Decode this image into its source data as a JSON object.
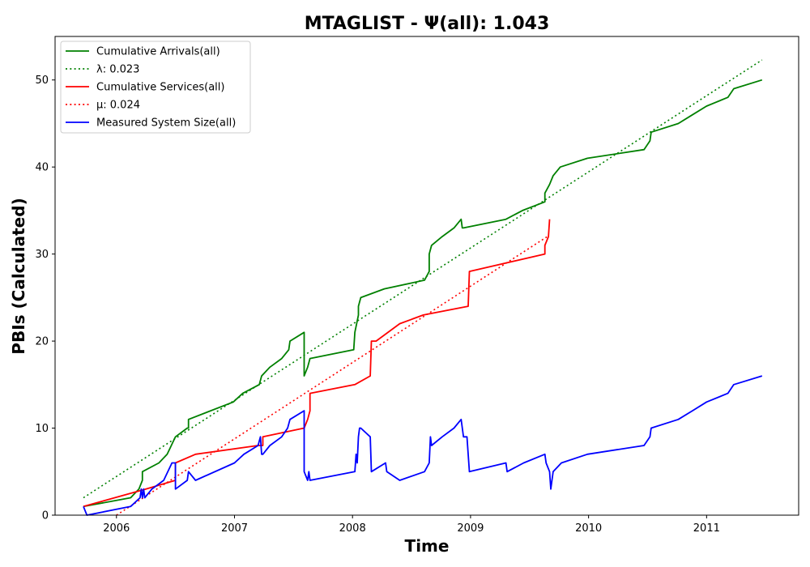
{
  "chart_data": {
    "type": "line",
    "title": "MTAGLIST -  Ψ(all): 1.043",
    "xlabel": "Time",
    "ylabel": "PBIs (Calculated)",
    "xlim": [
      2005.48,
      2011.78
    ],
    "ylim": [
      0,
      55
    ],
    "x_ticks": [
      2006,
      2007,
      2008,
      2009,
      2010,
      2011
    ],
    "x_tick_labels": [
      "2006",
      "2007",
      "2008",
      "2009",
      "2010",
      "2011"
    ],
    "y_ticks": [
      0,
      10,
      20,
      30,
      40,
      50
    ],
    "y_tick_labels": [
      "0",
      "10",
      "20",
      "30",
      "40",
      "50"
    ],
    "grid": false,
    "legend_position": "top-left",
    "series": [
      {
        "name": "Cumulative Arrivals(all)",
        "color": "#008000",
        "style": "solid",
        "x": [
          2005.72,
          2006.12,
          2006.19,
          2006.22,
          2006.22,
          2006.36,
          2006.43,
          2006.5,
          2006.6,
          2006.61,
          2006.61,
          2006.99,
          2007.07,
          2007.21,
          2007.23,
          2007.3,
          2007.4,
          2007.46,
          2007.47,
          2007.59,
          2007.59,
          2007.62,
          2007.64,
          2007.64,
          2008.01,
          2008.02,
          2008.05,
          2008.05,
          2008.07,
          2008.27,
          2008.61,
          2008.65,
          2008.65,
          2008.67,
          2008.76,
          2008.86,
          2008.92,
          2008.93,
          2008.94,
          2009.3,
          2009.44,
          2009.63,
          2009.63,
          2009.67,
          2009.7,
          2009.76,
          2009.99,
          2010.47,
          2010.52,
          2010.53,
          2010.76,
          2010.88,
          2011.0,
          2011.18,
          2011.23,
          2011.47
        ],
        "values": [
          1,
          2,
          3,
          4,
          5,
          6,
          7,
          9,
          10,
          10,
          11,
          13,
          14,
          15,
          16,
          17,
          18,
          19,
          20,
          21,
          16,
          17,
          18,
          18,
          19,
          21,
          23,
          24,
          25,
          26,
          27,
          28,
          30,
          31,
          32,
          33,
          34,
          33,
          33,
          34,
          35,
          36,
          37,
          38,
          39,
          40,
          41,
          42,
          43,
          44,
          45,
          46,
          47,
          48,
          49,
          50
        ]
      },
      {
        "name": "λ: 0.023",
        "color": "#008000",
        "style": "dotted",
        "x": [
          2005.72,
          2011.47
        ],
        "values": [
          2,
          52.3
        ]
      },
      {
        "name": "Cumulative Services(all)",
        "color": "#ff0000",
        "style": "solid",
        "x": [
          2005.72,
          2006.25,
          2006.5,
          2006.5,
          2006.67,
          2007.2,
          2007.24,
          2007.24,
          2007.59,
          2007.62,
          2007.64,
          2007.64,
          2008.02,
          2008.15,
          2008.16,
          2008.2,
          2008.4,
          2008.6,
          2008.98,
          2008.99,
          2009.63,
          2009.63,
          2009.66,
          2009.67
        ],
        "values": [
          1,
          3,
          4,
          6,
          7,
          8,
          8,
          9,
          10,
          11,
          12,
          14,
          15,
          16,
          20,
          20,
          22,
          23,
          24,
          28,
          30,
          31,
          32,
          34
        ]
      },
      {
        "name": "μ: 0.024",
        "color": "#ff0000",
        "style": "dotted",
        "x": [
          2006.0,
          2009.65
        ],
        "values": [
          0,
          32
        ]
      },
      {
        "name": "Measured System Size(all)",
        "color": "#0000ff",
        "style": "solid",
        "x": [
          2005.72,
          2005.75,
          2006.12,
          2006.2,
          2006.21,
          2006.22,
          2006.23,
          2006.24,
          2006.3,
          2006.4,
          2006.47,
          2006.5,
          2006.5,
          2006.6,
          2006.61,
          2006.67,
          2007.0,
          2007.08,
          2007.2,
          2007.22,
          2007.23,
          2007.24,
          2007.3,
          2007.4,
          2007.45,
          2007.47,
          2007.59,
          2007.59,
          2007.62,
          2007.63,
          2007.64,
          2007.64,
          2008.02,
          2008.03,
          2008.04,
          2008.05,
          2008.06,
          2008.07,
          2008.15,
          2008.16,
          2008.28,
          2008.29,
          2008.4,
          2008.61,
          2008.65,
          2008.66,
          2008.67,
          2008.67,
          2008.76,
          2008.86,
          2008.92,
          2008.94,
          2008.97,
          2008.99,
          2009.3,
          2009.31,
          2009.45,
          2009.63,
          2009.64,
          2009.67,
          2009.68,
          2009.7,
          2009.77,
          2009.99,
          2010.47,
          2010.52,
          2010.53,
          2010.76,
          2010.88,
          2011.0,
          2011.18,
          2011.23,
          2011.47
        ],
        "values": [
          1,
          0,
          1,
          2,
          3,
          2,
          3,
          2,
          3,
          4,
          6,
          6,
          3,
          4,
          5,
          4,
          6,
          7,
          8,
          9,
          7,
          7,
          8,
          9,
          10,
          11,
          12,
          5,
          4,
          5,
          4,
          4,
          5,
          7,
          6,
          9,
          10,
          10,
          9,
          5,
          6,
          5,
          4,
          5,
          6,
          9,
          8,
          8,
          9,
          10,
          11,
          9,
          9,
          5,
          6,
          5,
          6,
          7,
          6,
          5,
          3,
          5,
          6,
          7,
          8,
          9,
          10,
          11,
          12,
          13,
          14,
          15,
          16
        ]
      }
    ]
  }
}
